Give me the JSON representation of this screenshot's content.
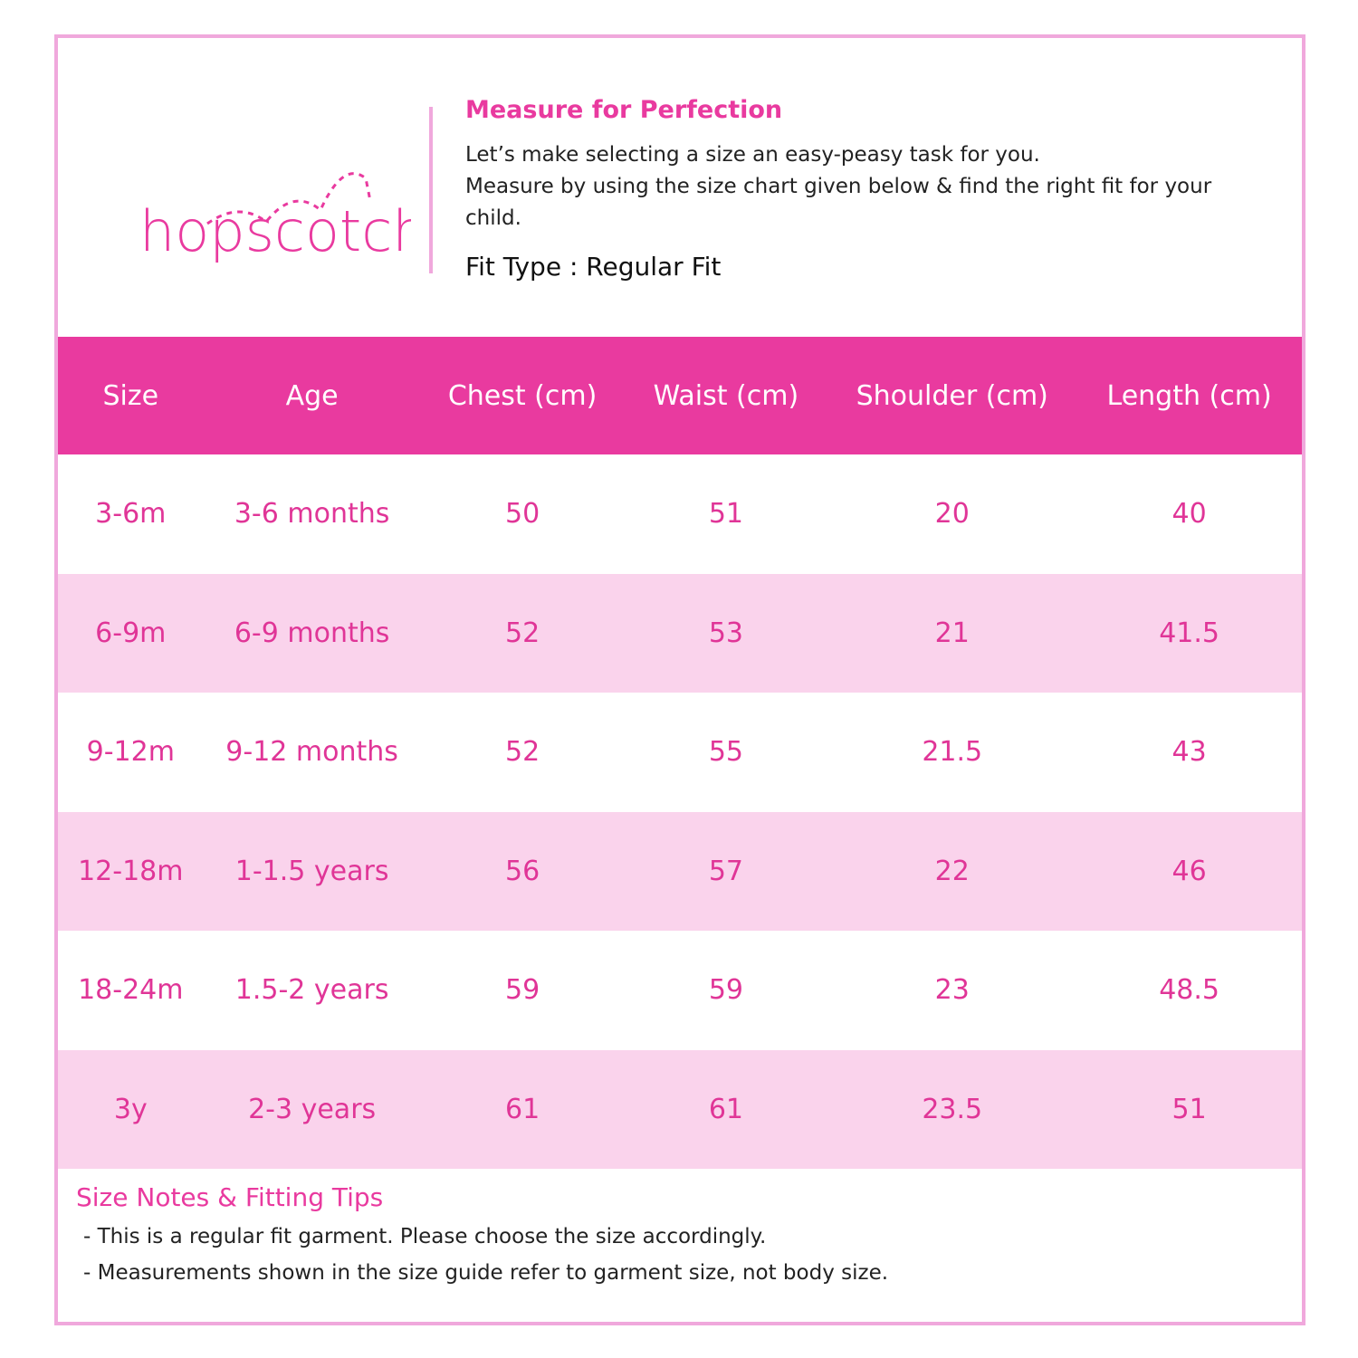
{
  "brand": {
    "logo_text": "hopscotch",
    "color": "#e93a9f"
  },
  "header": {
    "title": "Measure for Perfection",
    "intro_line1": "Let’s make selecting a size an easy-peasy task for you.",
    "intro_line2": "Measure by using the size chart given below & find the right fit for your child.",
    "fit_type": "Fit Type : Regular Fit"
  },
  "table": {
    "columns": [
      "Size",
      "Age",
      "Chest (cm)",
      "Waist (cm)",
      "Shoulder (cm)",
      "Length (cm)"
    ],
    "rows": [
      [
        "3-6m",
        "3-6 months",
        "50",
        "51",
        "20",
        "40"
      ],
      [
        "6-9m",
        "6-9 months",
        "52",
        "53",
        "21",
        "41.5"
      ],
      [
        "9-12m",
        "9-12 months",
        "52",
        "55",
        "21.5",
        "43"
      ],
      [
        "12-18m",
        "1-1.5 years",
        "56",
        "57",
        "22",
        "46"
      ],
      [
        "18-24m",
        "1.5-2 years",
        "59",
        "59",
        "23",
        "48.5"
      ],
      [
        "3y",
        "2-3 years",
        "61",
        "61",
        "23.5",
        "51"
      ]
    ]
  },
  "notes": {
    "title": "Size Notes & Fitting Tips",
    "items": [
      "- This is a regular fit garment. Please choose the size accordingly.",
      "- Measurements shown in the size guide refer to garment size, not body size."
    ]
  }
}
